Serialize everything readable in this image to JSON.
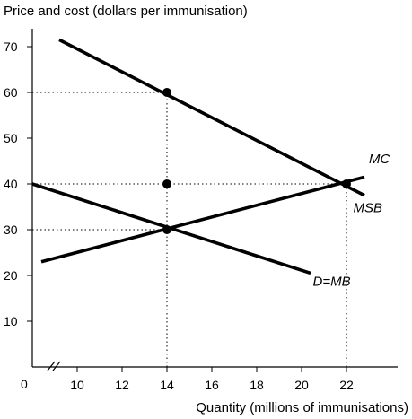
{
  "chart_data": {
    "type": "line",
    "ylabel": "Price and cost (dollars per immunisation)",
    "xlabel": "Quantity (millions of immunisations)",
    "xlim": [
      8,
      24
    ],
    "ylim": [
      0,
      75
    ],
    "axis_break": "x",
    "origin_label": "0",
    "x_ticks": [
      10,
      12,
      14,
      16,
      18,
      20,
      22
    ],
    "y_ticks": [
      10,
      20,
      30,
      40,
      50,
      60,
      70
    ],
    "series": [
      {
        "name": "MSB",
        "x": [
          9.2,
          22.8
        ],
        "y": [
          71.5,
          37.5
        ]
      },
      {
        "name": "MC",
        "x": [
          8.4,
          22.8
        ],
        "y": [
          23,
          41.5
        ]
      },
      {
        "name": "D=MB",
        "x": [
          8,
          20.4
        ],
        "y": [
          40,
          20.5
        ]
      }
    ],
    "points": [
      {
        "x": 14,
        "y": 60
      },
      {
        "x": 14,
        "y": 40
      },
      {
        "x": 14,
        "y": 30
      },
      {
        "x": 22,
        "y": 40
      }
    ],
    "guides": [
      {
        "from": [
          8,
          60
        ],
        "to": [
          14,
          60
        ]
      },
      {
        "from": [
          8,
          40
        ],
        "to": [
          22,
          40
        ]
      },
      {
        "from": [
          8,
          30
        ],
        "to": [
          14,
          30
        ]
      },
      {
        "from": [
          14,
          0
        ],
        "to": [
          14,
          60
        ]
      },
      {
        "from": [
          22,
          0
        ],
        "to": [
          22,
          40
        ]
      }
    ],
    "labels": [
      {
        "text": "MC",
        "x": 23.0,
        "y": 44.5
      },
      {
        "text": "MSB",
        "x": 22.3,
        "y": 33.8
      },
      {
        "text": "D=MB",
        "x": 20.5,
        "y": 17.7
      }
    ]
  }
}
